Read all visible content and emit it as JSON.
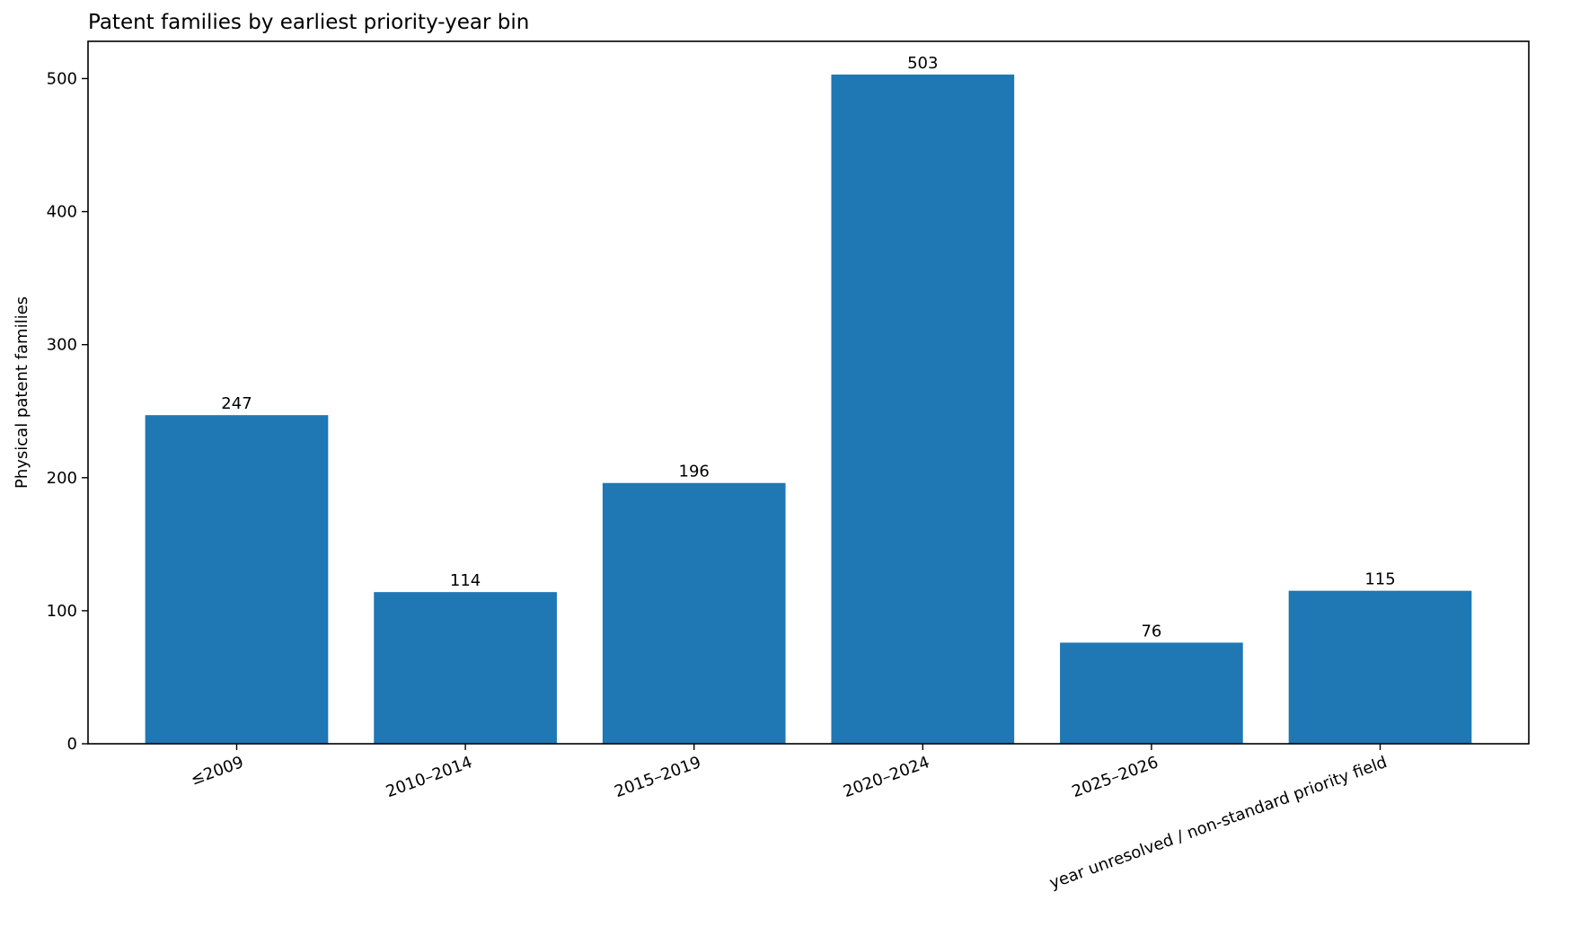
{
  "chart_data": {
    "type": "bar",
    "title": "Patent families by earliest priority-year bin",
    "xlabel": "",
    "ylabel": "Physical patent families",
    "categories": [
      "≤2009",
      "2010–2014",
      "2015–2019",
      "2020–2024",
      "2025–2026",
      "year unresolved / non-standard priority field"
    ],
    "values": [
      247,
      114,
      196,
      503,
      76,
      115
    ],
    "data_labels": [
      "247",
      "114",
      "196",
      "503",
      "76",
      "115"
    ],
    "ylim": [
      0,
      528
    ],
    "yticks": [
      0,
      100,
      200,
      300,
      400,
      500
    ],
    "ytick_labels": [
      "0",
      "100",
      "200",
      "300",
      "400",
      "500"
    ],
    "grid": false,
    "bar_color": "#1f77b4",
    "xtick_rotation_deg": 20
  }
}
